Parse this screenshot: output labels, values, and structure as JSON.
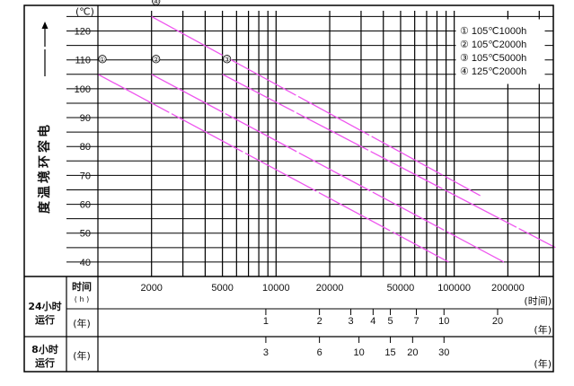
{
  "chart_data": {
    "type": "line",
    "x_scale": "log",
    "xlim": [
      1000,
      360000
    ],
    "ylim": [
      35,
      127
    ],
    "yunit": "(℃)",
    "ylabel": "电容环境温度",
    "yticks": [
      40,
      50,
      60,
      70,
      80,
      90,
      100,
      110,
      120
    ],
    "x_labeled_ticks": [
      {
        "v": 2000,
        "t": "2000"
      },
      {
        "v": 5000,
        "t": "5000"
      },
      {
        "v": 10000,
        "t": "10000"
      },
      {
        "v": 20000,
        "t": "20000"
      },
      {
        "v": 50000,
        "t": "50000"
      },
      {
        "v": 100000,
        "t": "100000"
      },
      {
        "v": 200000,
        "t": "200000"
      }
    ],
    "x_grid": [
      2000,
      3000,
      4000,
      5000,
      6000,
      7000,
      8000,
      9000,
      10000,
      20000,
      30000,
      40000,
      50000,
      60000,
      70000,
      80000,
      90000,
      100000,
      200000,
      300000
    ],
    "x_bottom_label": "(时间)",
    "series": [
      {
        "marker": "①",
        "x": [
          1000,
          93000
        ],
        "y": [
          105,
          40
        ]
      },
      {
        "marker": "②",
        "x": [
          2000,
          190000
        ],
        "y": [
          105,
          40
        ]
      },
      {
        "marker": "③",
        "x": [
          5000,
          370000
        ],
        "y": [
          105,
          45
        ]
      },
      {
        "marker": "④",
        "x": [
          2000,
          140000
        ],
        "y": [
          125,
          63
        ]
      }
    ],
    "line_color": "#ee55ee",
    "legend": {
      "position": "top-right",
      "entries": [
        "① 105℃1000h",
        "② 105℃2000h",
        "③ 105℃5000h",
        "④ 125℃2000h"
      ]
    },
    "table": {
      "row1_label": "24小时运行",
      "row1_header": "时间",
      "row1_unit": "( h )",
      "row1_bottom_unit": "(时间)",
      "row2_unit": "(年)",
      "row2_right_unit": "(年)",
      "years_24h": [
        {
          "hours": 8760,
          "t": "1"
        },
        {
          "hours": 17520,
          "t": "2"
        },
        {
          "hours": 26280,
          "t": "3"
        },
        {
          "hours": 35040,
          "t": "4"
        },
        {
          "hours": 43800,
          "t": "5"
        },
        {
          "hours": 61320,
          "t": "7"
        },
        {
          "hours": 87600,
          "t": "10"
        },
        {
          "hours": 175200,
          "t": "20"
        }
      ],
      "row3_label": "8小时运行",
      "row3_unit": "(年)",
      "row3_right_unit": "(年)",
      "years_8h": [
        {
          "hours": 8760,
          "t": "3"
        },
        {
          "hours": 17520,
          "t": "6"
        },
        {
          "hours": 29200,
          "t": "10"
        },
        {
          "hours": 43800,
          "t": "15"
        },
        {
          "hours": 58400,
          "t": "20"
        },
        {
          "hours": 87600,
          "t": "30"
        }
      ]
    }
  }
}
